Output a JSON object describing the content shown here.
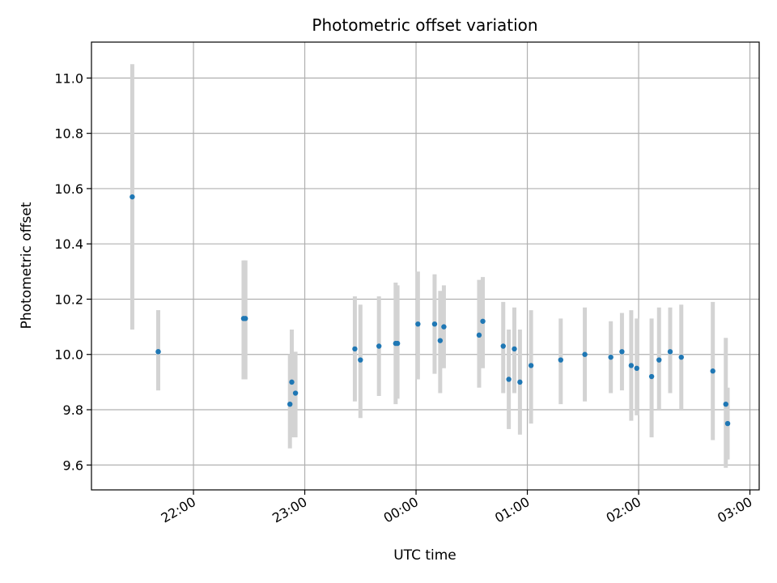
{
  "chart_data": {
    "type": "scatter",
    "title": "Photometric offset variation",
    "xlabel": "UTC time",
    "ylabel": "Photometric offset",
    "x_is_time": true,
    "xlim": [
      "21:05",
      "03:05"
    ],
    "ylim": [
      9.51,
      11.13
    ],
    "xticks": [
      "22:00",
      "23:00",
      "00:00",
      "01:00",
      "02:00",
      "03:00"
    ],
    "yticks": [
      9.6,
      9.8,
      10.0,
      10.2,
      10.4,
      10.6,
      10.8,
      11.0
    ],
    "grid": true,
    "colors": {
      "marker": "#1f77b4",
      "errorbar": "#d3d3d3"
    },
    "points": [
      {
        "t": "21:27",
        "y": 10.57,
        "lo": 10.09,
        "hi": 11.05
      },
      {
        "t": "21:41",
        "y": 10.01,
        "lo": 9.87,
        "hi": 10.16
      },
      {
        "t": "21:41",
        "y": 10.01,
        "lo": 9.87,
        "hi": 10.16
      },
      {
        "t": "22:27",
        "y": 10.13,
        "lo": 9.91,
        "hi": 10.34
      },
      {
        "t": "22:28",
        "y": 10.13,
        "lo": 9.91,
        "hi": 10.34
      },
      {
        "t": "22:52",
        "y": 9.82,
        "lo": 9.66,
        "hi": 10.0
      },
      {
        "t": "22:53",
        "y": 9.9,
        "lo": 9.7,
        "hi": 10.09
      },
      {
        "t": "22:55",
        "y": 9.86,
        "lo": 9.7,
        "hi": 10.01
      },
      {
        "t": "23:27",
        "y": 10.02,
        "lo": 9.83,
        "hi": 10.21
      },
      {
        "t": "23:30",
        "y": 9.98,
        "lo": 9.77,
        "hi": 10.18
      },
      {
        "t": "23:40",
        "y": 10.03,
        "lo": 9.85,
        "hi": 10.21
      },
      {
        "t": "23:49",
        "y": 10.04,
        "lo": 9.82,
        "hi": 10.26
      },
      {
        "t": "23:50",
        "y": 10.04,
        "lo": 9.84,
        "hi": 10.25
      },
      {
        "t": "00:01",
        "y": 10.11,
        "lo": 9.91,
        "hi": 10.3
      },
      {
        "t": "00:10",
        "y": 10.11,
        "lo": 9.93,
        "hi": 10.29
      },
      {
        "t": "00:13",
        "y": 10.05,
        "lo": 9.86,
        "hi": 10.23
      },
      {
        "t": "00:15",
        "y": 10.1,
        "lo": 9.95,
        "hi": 10.25
      },
      {
        "t": "00:34",
        "y": 10.07,
        "lo": 9.88,
        "hi": 10.27
      },
      {
        "t": "00:36",
        "y": 10.12,
        "lo": 9.95,
        "hi": 10.28
      },
      {
        "t": "00:47",
        "y": 10.03,
        "lo": 9.86,
        "hi": 10.19
      },
      {
        "t": "00:50",
        "y": 9.91,
        "lo": 9.73,
        "hi": 10.09
      },
      {
        "t": "00:53",
        "y": 10.02,
        "lo": 9.86,
        "hi": 10.17
      },
      {
        "t": "00:56",
        "y": 9.9,
        "lo": 9.71,
        "hi": 10.09
      },
      {
        "t": "01:02",
        "y": 9.96,
        "lo": 9.75,
        "hi": 10.16
      },
      {
        "t": "01:18",
        "y": 9.98,
        "lo": 9.82,
        "hi": 10.13
      },
      {
        "t": "01:31",
        "y": 10.0,
        "lo": 9.83,
        "hi": 10.17
      },
      {
        "t": "01:45",
        "y": 9.99,
        "lo": 9.86,
        "hi": 10.12
      },
      {
        "t": "01:51",
        "y": 10.01,
        "lo": 9.87,
        "hi": 10.15
      },
      {
        "t": "01:56",
        "y": 9.96,
        "lo": 9.76,
        "hi": 10.16
      },
      {
        "t": "01:59",
        "y": 9.95,
        "lo": 9.78,
        "hi": 10.13
      },
      {
        "t": "02:07",
        "y": 9.92,
        "lo": 9.7,
        "hi": 10.13
      },
      {
        "t": "02:11",
        "y": 9.98,
        "lo": 9.8,
        "hi": 10.17
      },
      {
        "t": "02:17",
        "y": 10.01,
        "lo": 9.86,
        "hi": 10.17
      },
      {
        "t": "02:23",
        "y": 9.99,
        "lo": 9.8,
        "hi": 10.18
      },
      {
        "t": "02:40",
        "y": 9.94,
        "lo": 9.69,
        "hi": 10.19
      },
      {
        "t": "02:47",
        "y": 9.82,
        "lo": 9.59,
        "hi": 10.06
      },
      {
        "t": "02:48",
        "y": 9.75,
        "lo": 9.62,
        "hi": 9.88
      }
    ]
  }
}
